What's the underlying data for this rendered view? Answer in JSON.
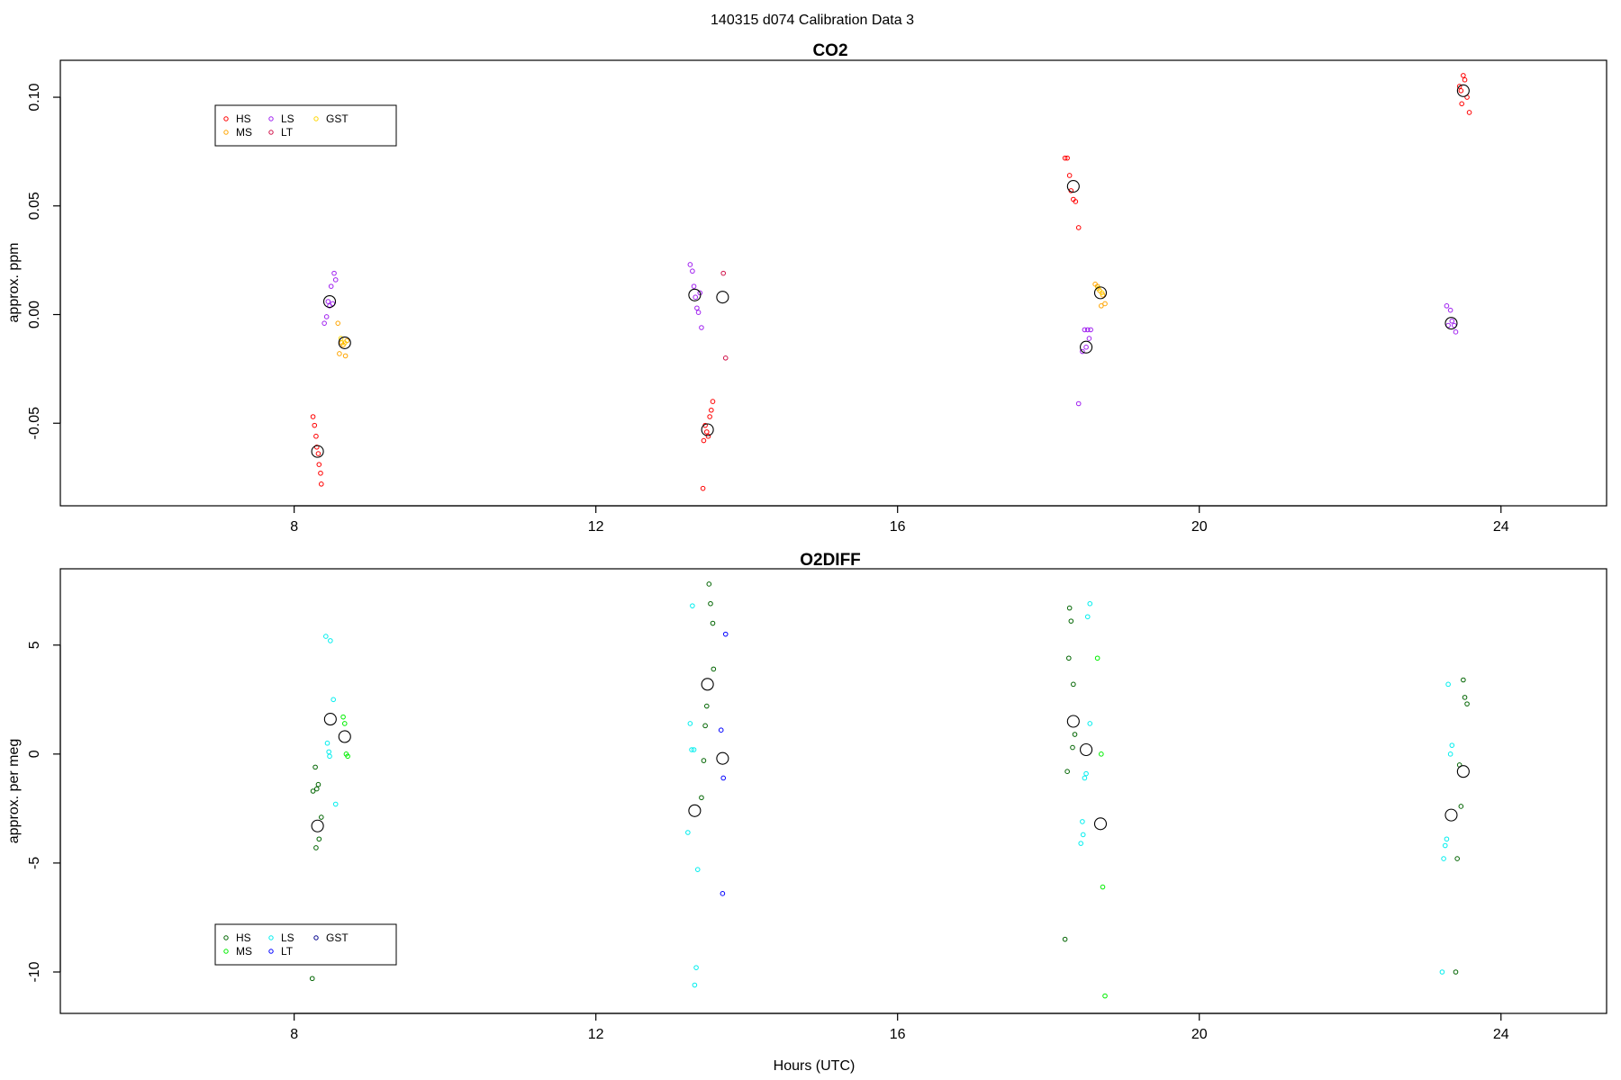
{
  "figure": {
    "title": "140315   d074   Calibration Data 3",
    "xlabel": "Hours (UTC)"
  },
  "chart_data": [
    {
      "type": "scatter",
      "title": "CO2",
      "xlabel": "",
      "ylabel": "approx. ppm",
      "xlim": [
        4.9,
        25.4
      ],
      "ylim": [
        -0.088,
        0.117
      ],
      "xticks": [
        8,
        12,
        16,
        20,
        24
      ],
      "xtick_labels": [
        "8",
        "12",
        "16",
        "20",
        "24"
      ],
      "yticks": [
        -0.05,
        0.0,
        0.05,
        0.1
      ],
      "ytick_labels": [
        "-0.05",
        "0.00",
        "0.05",
        "0.10"
      ],
      "grid": false,
      "legend_placement": "top-left",
      "legend": [
        {
          "label": "HS",
          "color": "#ff0000"
        },
        {
          "label": "MS",
          "color": "#ffa500"
        },
        {
          "label": "LS",
          "color": "#a020f0"
        },
        {
          "label": "LT",
          "color": "#d01048"
        },
        {
          "label": "GST",
          "color": "#ffd700"
        }
      ],
      "series": [
        {
          "name": "HS",
          "color": "#ff0000",
          "points": [
            [
              8.25,
              -0.047
            ],
            [
              8.27,
              -0.051
            ],
            [
              8.29,
              -0.056
            ],
            [
              8.3,
              -0.061
            ],
            [
              8.32,
              -0.064
            ],
            [
              8.33,
              -0.069
            ],
            [
              8.35,
              -0.073
            ],
            [
              8.36,
              -0.078
            ],
            [
              13.45,
              -0.051
            ],
            [
              13.47,
              -0.054
            ],
            [
              13.49,
              -0.056
            ],
            [
              13.43,
              -0.058
            ],
            [
              13.51,
              -0.047
            ],
            [
              13.53,
              -0.044
            ],
            [
              13.55,
              -0.04
            ],
            [
              13.42,
              -0.08
            ],
            [
              18.22,
              0.072
            ],
            [
              18.25,
              0.072
            ],
            [
              18.28,
              0.064
            ],
            [
              18.3,
              0.057
            ],
            [
              18.33,
              0.053
            ],
            [
              18.36,
              0.052
            ],
            [
              18.4,
              0.04
            ],
            [
              23.45,
              0.105
            ],
            [
              23.48,
              0.097
            ],
            [
              23.5,
              0.11
            ],
            [
              23.52,
              0.108
            ],
            [
              23.55,
              0.1
            ],
            [
              23.47,
              0.103
            ],
            [
              23.58,
              0.093
            ]
          ]
        },
        {
          "name": "MS",
          "color": "#ffa500",
          "points": [
            [
              8.58,
              -0.004
            ],
            [
              8.6,
              -0.018
            ],
            [
              8.63,
              -0.013
            ],
            [
              8.65,
              -0.014
            ],
            [
              8.68,
              -0.019
            ],
            [
              8.7,
              -0.012
            ],
            [
              18.62,
              0.014
            ],
            [
              18.65,
              0.013
            ],
            [
              18.68,
              0.011
            ],
            [
              18.7,
              0.004
            ],
            [
              18.72,
              0.009
            ],
            [
              18.75,
              0.005
            ]
          ]
        },
        {
          "name": "LS",
          "color": "#a020f0",
          "points": [
            [
              8.4,
              -0.004
            ],
            [
              8.43,
              -0.001
            ],
            [
              8.45,
              0.006
            ],
            [
              8.47,
              0.004
            ],
            [
              8.49,
              0.013
            ],
            [
              8.51,
              0.005
            ],
            [
              8.53,
              0.019
            ],
            [
              8.55,
              0.016
            ],
            [
              13.25,
              0.023
            ],
            [
              13.28,
              0.02
            ],
            [
              13.3,
              0.013
            ],
            [
              13.32,
              0.008
            ],
            [
              13.34,
              0.003
            ],
            [
              13.36,
              0.001
            ],
            [
              13.38,
              0.01
            ],
            [
              13.4,
              -0.006
            ],
            [
              18.4,
              -0.041
            ],
            [
              18.45,
              -0.017
            ],
            [
              18.48,
              -0.007
            ],
            [
              18.5,
              -0.015
            ],
            [
              18.52,
              -0.007
            ],
            [
              18.54,
              -0.011
            ],
            [
              18.56,
              -0.007
            ],
            [
              23.28,
              0.004
            ],
            [
              23.3,
              -0.005
            ],
            [
              23.33,
              0.002
            ],
            [
              23.35,
              -0.003
            ],
            [
              23.38,
              -0.005
            ],
            [
              23.4,
              -0.008
            ]
          ]
        },
        {
          "name": "LT",
          "color": "#d01048",
          "points": [
            [
              13.69,
              0.019
            ],
            [
              13.72,
              -0.02
            ]
          ]
        },
        {
          "name": "GST",
          "color": "#ffd700",
          "points": [
            [
              8.62,
              -0.011
            ],
            [
              8.67,
              -0.013
            ],
            [
              18.66,
              0.012
            ],
            [
              18.71,
              0.01
            ]
          ]
        }
      ],
      "means": [
        [
          8.31,
          -0.063
        ],
        [
          8.47,
          0.006
        ],
        [
          8.67,
          -0.013
        ],
        [
          13.31,
          0.009
        ],
        [
          13.48,
          -0.053
        ],
        [
          13.68,
          0.008
        ],
        [
          18.33,
          0.059
        ],
        [
          18.5,
          -0.015
        ],
        [
          18.69,
          0.01
        ],
        [
          23.34,
          -0.004
        ],
        [
          23.5,
          0.103
        ]
      ]
    },
    {
      "type": "scatter",
      "title": "O2DIFF",
      "xlabel": "Hours (UTC)",
      "ylabel": "approx. per meg",
      "xlim": [
        4.9,
        25.4
      ],
      "ylim": [
        -11.9,
        8.5
      ],
      "xticks": [
        8,
        12,
        16,
        20,
        24
      ],
      "xtick_labels": [
        "8",
        "12",
        "16",
        "20",
        "24"
      ],
      "yticks": [
        -10,
        -5,
        0,
        5
      ],
      "ytick_labels": [
        "-10",
        "-5",
        "0",
        "5"
      ],
      "grid": false,
      "legend_placement": "bottom-left",
      "legend": [
        {
          "label": "HS",
          "color": "#006400"
        },
        {
          "label": "MS",
          "color": "#00ee00"
        },
        {
          "label": "LS",
          "color": "#00eeee"
        },
        {
          "label": "LT",
          "color": "#0000ff"
        },
        {
          "label": "GST",
          "color": "#00008b"
        }
      ],
      "series": [
        {
          "name": "HS",
          "color": "#006400",
          "points": [
            [
              8.28,
              -0.6
            ],
            [
              8.3,
              -1.6
            ],
            [
              8.32,
              -1.4
            ],
            [
              8.25,
              -1.7
            ],
            [
              8.33,
              -3.9
            ],
            [
              8.29,
              -4.3
            ],
            [
              8.36,
              -2.9
            ],
            [
              8.24,
              -10.3
            ],
            [
              13.5,
              7.8
            ],
            [
              13.52,
              6.9
            ],
            [
              13.55,
              6.0
            ],
            [
              13.56,
              3.9
            ],
            [
              13.47,
              2.2
            ],
            [
              13.45,
              1.3
            ],
            [
              13.43,
              -0.3
            ],
            [
              13.4,
              -2.0
            ],
            [
              18.25,
              -0.8
            ],
            [
              18.28,
              6.7
            ],
            [
              18.3,
              6.1
            ],
            [
              18.27,
              4.4
            ],
            [
              18.33,
              3.2
            ],
            [
              18.35,
              0.9
            ],
            [
              18.32,
              0.3
            ],
            [
              18.22,
              -8.5
            ],
            [
              23.45,
              -0.5
            ],
            [
              23.47,
              -2.4
            ],
            [
              23.5,
              3.4
            ],
            [
              23.52,
              2.6
            ],
            [
              23.55,
              2.3
            ],
            [
              23.42,
              -4.8
            ],
            [
              23.4,
              -10.0
            ]
          ]
        },
        {
          "name": "MS",
          "color": "#00ee00",
          "points": [
            [
              8.65,
              1.7
            ],
            [
              8.67,
              1.4
            ],
            [
              8.69,
              0.0
            ],
            [
              8.71,
              -0.1
            ],
            [
              18.65,
              4.4
            ],
            [
              18.7,
              0.0
            ],
            [
              18.72,
              -6.1
            ],
            [
              18.75,
              -11.1
            ]
          ]
        },
        {
          "name": "LS",
          "color": "#00eeee",
          "points": [
            [
              8.42,
              5.4
            ],
            [
              8.48,
              5.2
            ],
            [
              8.52,
              2.5
            ],
            [
              8.44,
              0.5
            ],
            [
              8.46,
              0.1
            ],
            [
              8.47,
              -0.1
            ],
            [
              8.55,
              -2.3
            ],
            [
              13.28,
              6.8
            ],
            [
              13.25,
              1.4
            ],
            [
              13.27,
              0.2
            ],
            [
              13.3,
              0.2
            ],
            [
              13.22,
              -3.6
            ],
            [
              13.35,
              -5.3
            ],
            [
              13.33,
              -9.8
            ],
            [
              13.31,
              -10.6
            ],
            [
              18.55,
              6.9
            ],
            [
              18.52,
              6.3
            ],
            [
              18.55,
              1.4
            ],
            [
              18.5,
              -0.9
            ],
            [
              18.48,
              -1.1
            ],
            [
              18.45,
              -3.1
            ],
            [
              18.46,
              -3.7
            ],
            [
              18.43,
              -4.1
            ],
            [
              23.3,
              3.2
            ],
            [
              23.35,
              0.4
            ],
            [
              23.33,
              0.0
            ],
            [
              23.28,
              -3.9
            ],
            [
              23.26,
              -4.2
            ],
            [
              23.24,
              -4.8
            ],
            [
              23.22,
              -10.0
            ]
          ]
        },
        {
          "name": "LT",
          "color": "#0000ff",
          "points": [
            [
              13.72,
              5.5
            ],
            [
              13.66,
              1.1
            ],
            [
              13.69,
              -1.1
            ],
            [
              13.68,
              -6.4
            ]
          ]
        },
        {
          "name": "GST",
          "color": "#00008b",
          "points": []
        }
      ],
      "means": [
        [
          8.31,
          -3.3
        ],
        [
          8.48,
          1.6
        ],
        [
          8.67,
          0.8
        ],
        [
          13.31,
          -2.6
        ],
        [
          13.48,
          3.2
        ],
        [
          13.68,
          -0.2
        ],
        [
          18.33,
          1.5
        ],
        [
          18.5,
          0.2
        ],
        [
          18.69,
          -3.2
        ],
        [
          23.34,
          -2.8
        ],
        [
          23.5,
          -0.8
        ]
      ]
    }
  ]
}
